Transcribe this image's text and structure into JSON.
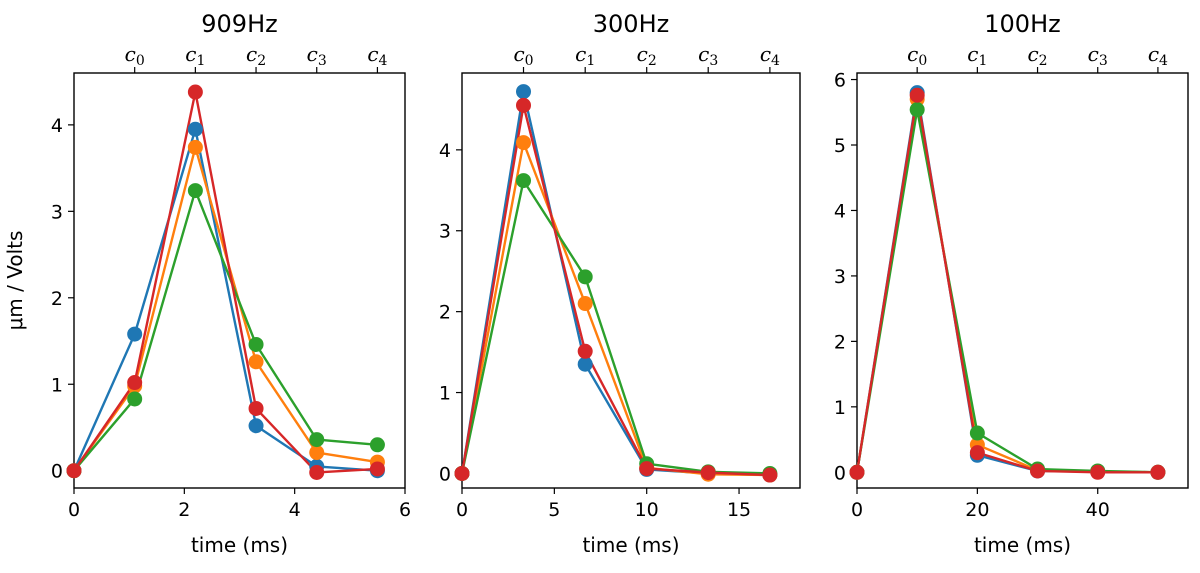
{
  "chart_data": [
    {
      "type": "line",
      "title": "909Hz",
      "xlabel": "time (ms)",
      "ylabel": "μm / Volts",
      "xlim": [
        0,
        6
      ],
      "ylim": [
        -0.2,
        4.6
      ],
      "xticks": [
        0,
        2,
        4,
        6
      ],
      "yticks": [
        0,
        1,
        2,
        3,
        4
      ],
      "top_axis": {
        "labels": [
          "c",
          "c",
          "c",
          "c",
          "c"
        ],
        "subscripts": [
          "0",
          "1",
          "2",
          "3",
          "4"
        ],
        "x": [
          1.1,
          2.2,
          3.3,
          4.4,
          5.5
        ]
      },
      "x": [
        0,
        1.1,
        2.2,
        3.3,
        4.4,
        5.5
      ],
      "grid": false,
      "series": [
        {
          "color": "#1f77b4",
          "values": [
            0,
            1.58,
            3.95,
            0.52,
            0.05,
            0.0
          ]
        },
        {
          "color": "#ff7f0e",
          "values": [
            0,
            0.98,
            3.74,
            1.26,
            0.21,
            0.1
          ]
        },
        {
          "color": "#2ca02c",
          "values": [
            0,
            0.83,
            3.24,
            1.46,
            0.36,
            0.3
          ]
        },
        {
          "color": "#d62728",
          "values": [
            0,
            1.02,
            4.38,
            0.72,
            -0.02,
            0.02
          ]
        }
      ]
    },
    {
      "type": "line",
      "title": "300Hz",
      "xlabel": "time (ms)",
      "ylabel": "",
      "xlim": [
        0,
        18.3
      ],
      "ylim": [
        -0.18,
        4.95
      ],
      "xticks": [
        0,
        5,
        10,
        15
      ],
      "yticks": [
        0,
        1,
        2,
        3,
        4
      ],
      "top_axis": {
        "labels": [
          "c",
          "c",
          "c",
          "c",
          "c"
        ],
        "subscripts": [
          "0",
          "1",
          "2",
          "3",
          "4"
        ],
        "x": [
          3.33,
          6.67,
          10.0,
          13.33,
          16.67
        ]
      },
      "x": [
        0,
        3.33,
        6.67,
        10.0,
        13.33,
        16.67
      ],
      "grid": false,
      "series": [
        {
          "color": "#1f77b4",
          "values": [
            0,
            4.72,
            1.35,
            0.05,
            0.0,
            -0.02
          ]
        },
        {
          "color": "#ff7f0e",
          "values": [
            0,
            4.09,
            2.1,
            0.07,
            -0.01,
            -0.02
          ]
        },
        {
          "color": "#2ca02c",
          "values": [
            0,
            3.62,
            2.43,
            0.12,
            0.02,
            0.0
          ]
        },
        {
          "color": "#d62728",
          "values": [
            0,
            4.55,
            1.51,
            0.06,
            0.01,
            -0.02
          ]
        }
      ]
    },
    {
      "type": "line",
      "title": "100Hz",
      "xlabel": "time (ms)",
      "ylabel": "",
      "xlim": [
        0,
        55
      ],
      "ylim": [
        -0.24,
        6.1
      ],
      "xticks": [
        0,
        20,
        40
      ],
      "yticks": [
        0,
        1,
        2,
        3,
        4,
        5,
        6
      ],
      "top_axis": {
        "labels": [
          "c",
          "c",
          "c",
          "c",
          "c"
        ],
        "subscripts": [
          "0",
          "1",
          "2",
          "3",
          "4"
        ],
        "x": [
          10,
          20,
          30,
          40,
          50
        ]
      },
      "x": [
        0,
        10,
        20,
        30,
        40,
        50
      ],
      "grid": false,
      "series": [
        {
          "color": "#1f77b4",
          "values": [
            0,
            5.8,
            0.26,
            0.02,
            0.01,
            0.0
          ]
        },
        {
          "color": "#ff7f0e",
          "values": [
            0,
            5.7,
            0.42,
            0.03,
            0.01,
            0.0
          ]
        },
        {
          "color": "#2ca02c",
          "values": [
            0,
            5.54,
            0.6,
            0.05,
            0.02,
            0.0
          ]
        },
        {
          "color": "#d62728",
          "values": [
            0,
            5.76,
            0.3,
            0.02,
            0.0,
            0.0
          ]
        }
      ]
    }
  ]
}
